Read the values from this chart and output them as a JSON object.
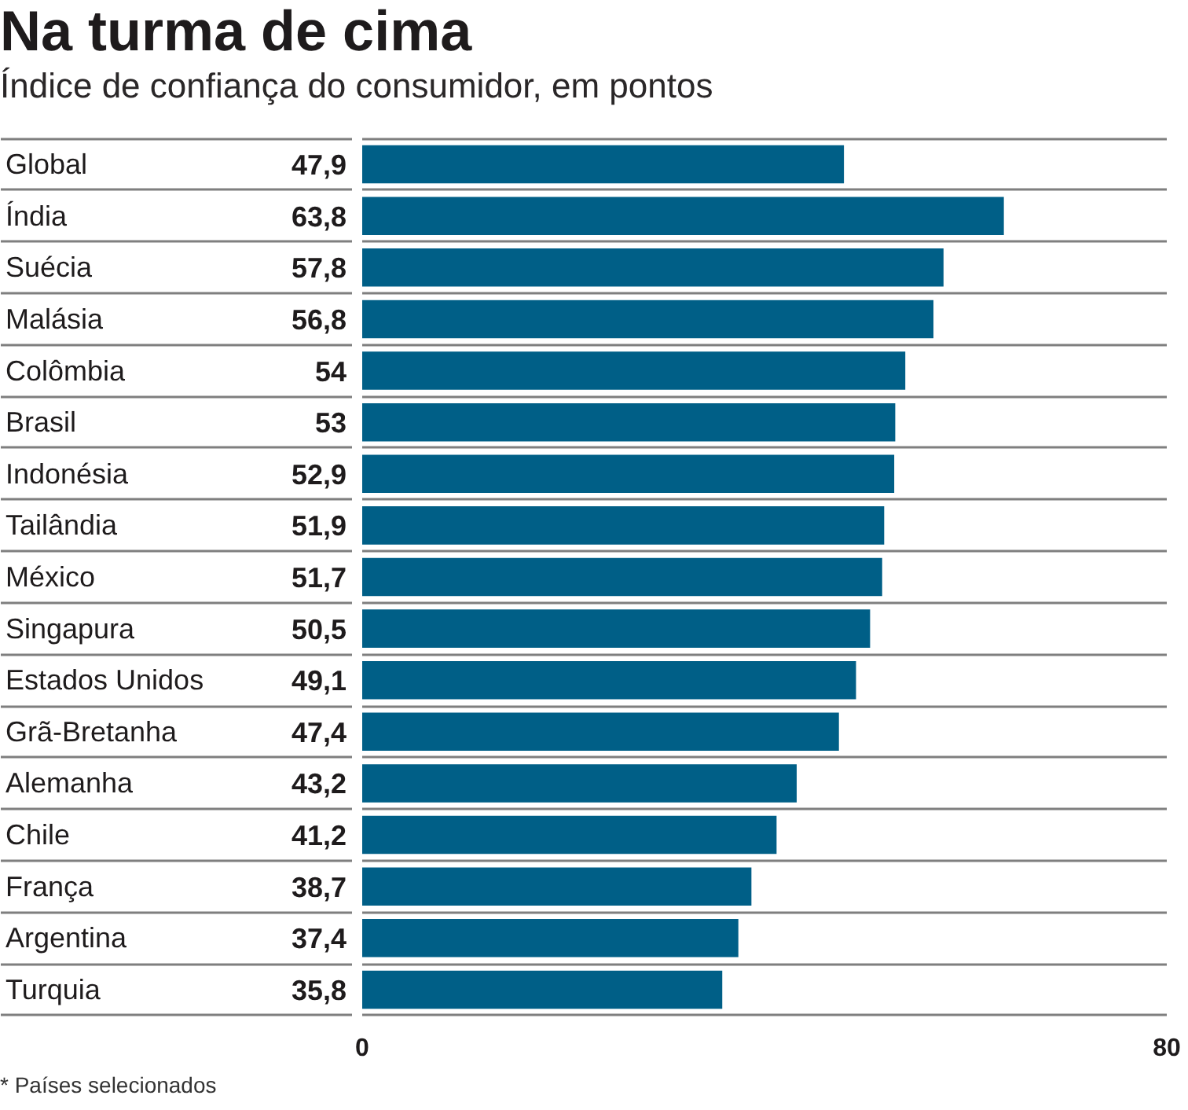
{
  "chart_data": {
    "type": "bar",
    "orientation": "horizontal",
    "title": "Na turma de cima",
    "subtitle": "Índice de confiança do consumidor, em pontos",
    "categories": [
      "Global",
      "Índia",
      "Suécia",
      "Malásia",
      "Colômbia",
      "Brasil",
      "Indonésia",
      "Tailândia",
      "México",
      "Singapura",
      "Estados Unidos",
      "Grã-Bretanha",
      "Alemanha",
      "Chile",
      "França",
      "Argentina",
      "Turquia"
    ],
    "values": [
      47.9,
      63.8,
      57.8,
      56.8,
      54,
      53,
      52.9,
      51.9,
      51.7,
      50.5,
      49.1,
      47.4,
      43.2,
      41.2,
      38.7,
      37.4,
      35.8
    ],
    "value_labels": [
      "47,9",
      "63,8",
      "57,8",
      "56,8",
      "54",
      "53",
      "52,9",
      "51,9",
      "51,7",
      "50,5",
      "49,1",
      "47,4",
      "43,2",
      "41,2",
      "38,7",
      "37,4",
      "35,8"
    ],
    "color": "#005f87",
    "xlim": [
      0,
      80
    ],
    "xticks": [
      0,
      80
    ],
    "grid": "y",
    "annotations": [
      "* Países selecionados"
    ]
  }
}
